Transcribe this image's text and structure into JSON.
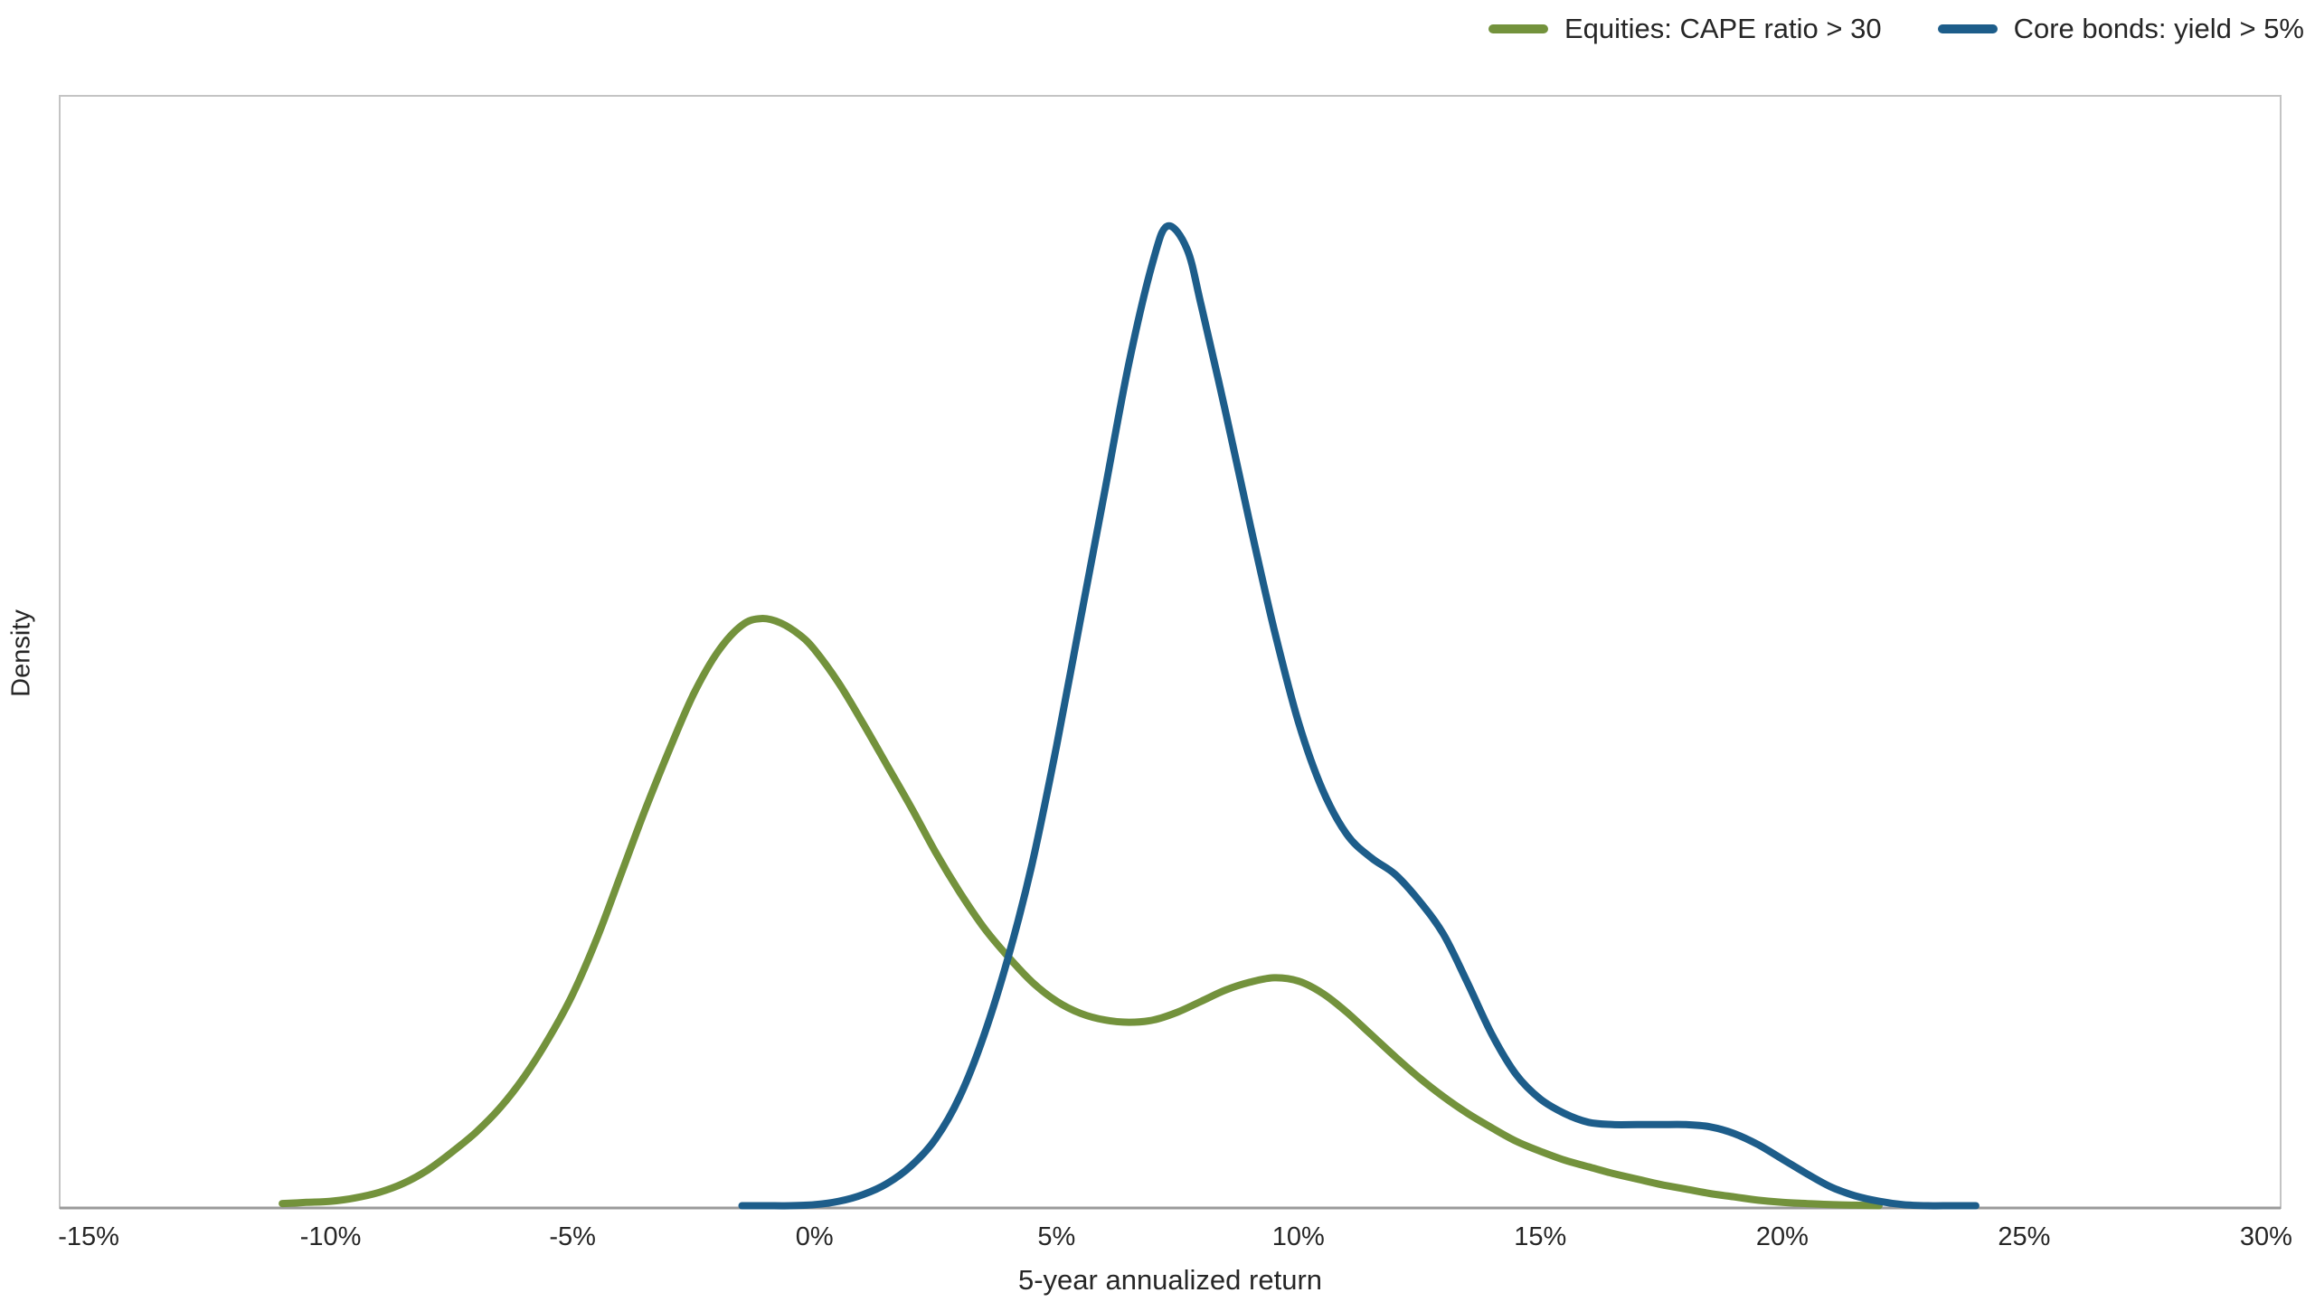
{
  "figure": {
    "xlabel": "5-year annualized return",
    "ylabel": "Density"
  },
  "chart_data": {
    "type": "line",
    "subtype": "density-curves",
    "title": "",
    "xlabel": "5-year annualized return",
    "ylabel": "Density",
    "xlim": [
      -15.6,
      30.3
    ],
    "ylim": [
      0,
      1
    ],
    "grid": false,
    "legend_position": "top-right",
    "border_color": "#c4c4c4",
    "axis_line_color": "#9a9a9a",
    "x_ticks": [
      {
        "value": -15,
        "label": "-15%"
      },
      {
        "value": -10,
        "label": "-10%"
      },
      {
        "value": -5,
        "label": "-5%"
      },
      {
        "value": 0,
        "label": "0%"
      },
      {
        "value": 5,
        "label": "5%"
      },
      {
        "value": 10,
        "label": "10%"
      },
      {
        "value": 15,
        "label": "15%"
      },
      {
        "value": 20,
        "label": "20%"
      },
      {
        "value": 25,
        "label": "25%"
      },
      {
        "value": 30,
        "label": "30%"
      }
    ],
    "series": [
      {
        "name": "Equities: CAPE ratio > 30",
        "color": "#73923C",
        "peak": {
          "x": -1.1,
          "density": 0.53
        },
        "points": [
          [
            -11,
            0.004
          ],
          [
            -10.5,
            0.005
          ],
          [
            -10,
            0.006
          ],
          [
            -9.5,
            0.009
          ],
          [
            -9,
            0.014
          ],
          [
            -8.5,
            0.022
          ],
          [
            -8,
            0.034
          ],
          [
            -7.5,
            0.05
          ],
          [
            -7,
            0.068
          ],
          [
            -6.5,
            0.09
          ],
          [
            -6,
            0.118
          ],
          [
            -5.5,
            0.152
          ],
          [
            -5,
            0.192
          ],
          [
            -4.5,
            0.242
          ],
          [
            -4,
            0.3
          ],
          [
            -3.5,
            0.358
          ],
          [
            -3,
            0.412
          ],
          [
            -2.5,
            0.462
          ],
          [
            -2,
            0.5
          ],
          [
            -1.5,
            0.524
          ],
          [
            -1.1,
            0.53
          ],
          [
            -0.7,
            0.526
          ],
          [
            -0.3,
            0.515
          ],
          [
            0,
            0.502
          ],
          [
            0.5,
            0.472
          ],
          [
            1,
            0.436
          ],
          [
            1.5,
            0.398
          ],
          [
            2,
            0.36
          ],
          [
            2.5,
            0.32
          ],
          [
            3,
            0.284
          ],
          [
            3.5,
            0.252
          ],
          [
            4,
            0.226
          ],
          [
            4.5,
            0.203
          ],
          [
            5,
            0.186
          ],
          [
            5.5,
            0.175
          ],
          [
            6,
            0.169
          ],
          [
            6.5,
            0.167
          ],
          [
            7,
            0.169
          ],
          [
            7.5,
            0.176
          ],
          [
            8,
            0.186
          ],
          [
            8.5,
            0.196
          ],
          [
            9,
            0.203
          ],
          [
            9.5,
            0.207
          ],
          [
            10,
            0.204
          ],
          [
            10.5,
            0.193
          ],
          [
            11,
            0.176
          ],
          [
            11.5,
            0.156
          ],
          [
            12,
            0.136
          ],
          [
            12.5,
            0.117
          ],
          [
            13,
            0.1
          ],
          [
            13.5,
            0.085
          ],
          [
            14,
            0.072
          ],
          [
            14.5,
            0.06
          ],
          [
            15,
            0.051
          ],
          [
            15.5,
            0.043
          ],
          [
            16,
            0.037
          ],
          [
            16.5,
            0.031
          ],
          [
            17,
            0.026
          ],
          [
            17.5,
            0.021
          ],
          [
            18,
            0.017
          ],
          [
            18.5,
            0.013
          ],
          [
            19,
            0.01
          ],
          [
            19.5,
            0.007
          ],
          [
            20,
            0.005
          ],
          [
            20.5,
            0.004
          ],
          [
            21,
            0.003
          ],
          [
            21.5,
            0.0025
          ],
          [
            22,
            0.002
          ]
        ]
      },
      {
        "name": "Core bonds: yield > 5%",
        "color": "#1D5D8A",
        "peak": {
          "x": 7.3,
          "density": 0.883
        },
        "points": [
          [
            -1.5,
            0.002
          ],
          [
            -1,
            0.002
          ],
          [
            -0.5,
            0.002
          ],
          [
            0,
            0.003
          ],
          [
            0.5,
            0.006
          ],
          [
            1,
            0.012
          ],
          [
            1.5,
            0.022
          ],
          [
            2,
            0.038
          ],
          [
            2.5,
            0.062
          ],
          [
            3,
            0.1
          ],
          [
            3.5,
            0.155
          ],
          [
            4,
            0.225
          ],
          [
            4.5,
            0.31
          ],
          [
            5,
            0.415
          ],
          [
            5.5,
            0.53
          ],
          [
            6,
            0.645
          ],
          [
            6.5,
            0.76
          ],
          [
            7,
            0.852
          ],
          [
            7.3,
            0.883
          ],
          [
            7.7,
            0.862
          ],
          [
            8,
            0.81
          ],
          [
            8.5,
            0.715
          ],
          [
            9,
            0.615
          ],
          [
            9.5,
            0.52
          ],
          [
            10,
            0.437
          ],
          [
            10.5,
            0.376
          ],
          [
            11,
            0.336
          ],
          [
            11.5,
            0.315
          ],
          [
            12,
            0.3
          ],
          [
            12.5,
            0.276
          ],
          [
            13,
            0.246
          ],
          [
            13.5,
            0.202
          ],
          [
            14,
            0.156
          ],
          [
            14.5,
            0.12
          ],
          [
            15,
            0.098
          ],
          [
            15.5,
            0.085
          ],
          [
            16,
            0.077
          ],
          [
            16.5,
            0.075
          ],
          [
            17,
            0.075
          ],
          [
            17.5,
            0.075
          ],
          [
            18,
            0.075
          ],
          [
            18.5,
            0.073
          ],
          [
            19,
            0.067
          ],
          [
            19.5,
            0.057
          ],
          [
            20,
            0.044
          ],
          [
            20.5,
            0.031
          ],
          [
            21,
            0.019
          ],
          [
            21.5,
            0.011
          ],
          [
            22,
            0.006
          ],
          [
            22.5,
            0.003
          ],
          [
            23,
            0.002
          ],
          [
            23.5,
            0.002
          ],
          [
            24,
            0.002
          ]
        ]
      }
    ]
  }
}
